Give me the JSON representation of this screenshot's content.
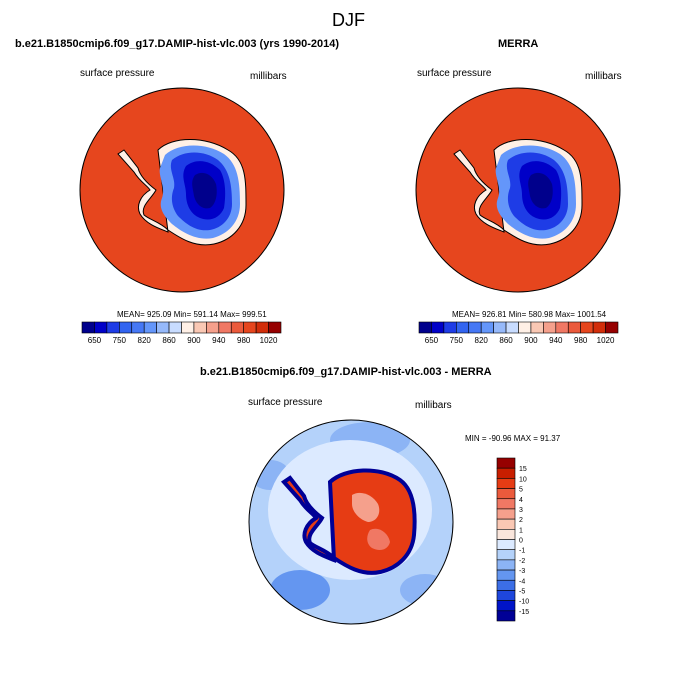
{
  "figure_title": "DJF",
  "panels": [
    {
      "title": "b.e21.B1850cmip6.f09_g17.DAMIP-hist-vlc.003 (yrs 1990-2014)",
      "left_label": "surface pressure",
      "right_label": "millibars",
      "stats": "MEAN= 925.09  Min= 591.14  Max= 999.51"
    },
    {
      "title": "MERRA",
      "left_label": "surface pressure",
      "right_label": "millibars",
      "stats": "MEAN= 926.81  Min= 580.98  Max= 1001.54"
    },
    {
      "title": "b.e21.B1850cmip6.f09_g17.DAMIP-hist-vlc.003 - MERRA",
      "left_label": "surface pressure",
      "right_label": "millibars",
      "stats": "MIN = -90.96 MAX =  91.37"
    }
  ],
  "colorbar_pressure": {
    "tick_labels": [
      "650",
      "750",
      "820",
      "860",
      "900",
      "940",
      "980",
      "1020"
    ],
    "colors": [
      "#00008c",
      "#0000c8",
      "#1e3ce6",
      "#3264f0",
      "#4678f5",
      "#6496fa",
      "#96b9fa",
      "#c8dcff",
      "#fff0e6",
      "#fac8b4",
      "#f5a08c",
      "#f07864",
      "#eb5a3c",
      "#e6461e",
      "#d22d0a",
      "#960000"
    ]
  },
  "colorbar_difference": {
    "tick_labels": [
      "15",
      "10",
      "5",
      "4",
      "3",
      "2",
      "1",
      "0",
      "-1",
      "-2",
      "-3",
      "-4",
      "-5",
      "-10",
      "-15"
    ],
    "colors": [
      "#960000",
      "#c81e00",
      "#e63c14",
      "#eb5a3c",
      "#f07864",
      "#f5a08c",
      "#fac8b4",
      "#fae6dc",
      "#dceaff",
      "#b4d2fa",
      "#8cb4f5",
      "#6496f0",
      "#3c6ee6",
      "#1e46dc",
      "#0014c8",
      "#000096"
    ]
  }
}
